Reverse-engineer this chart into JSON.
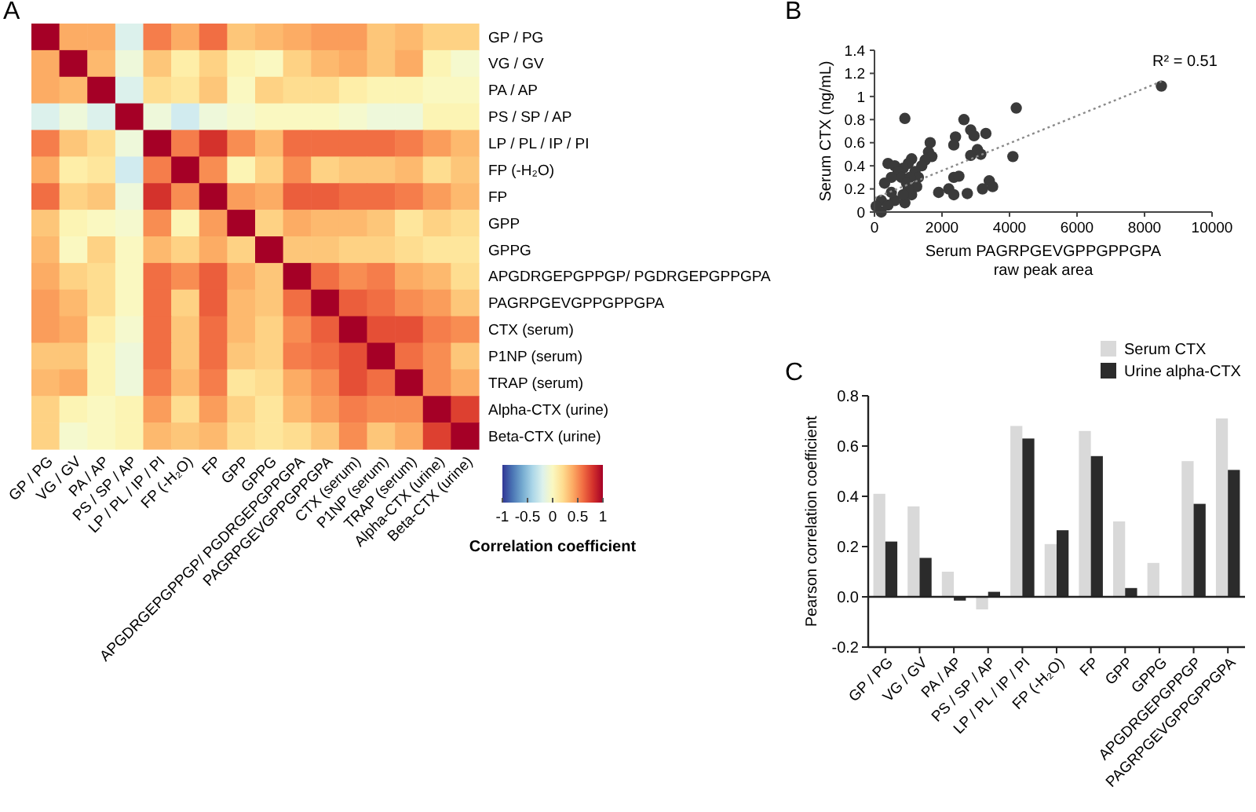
{
  "chart_data": [
    {
      "type": "heatmap",
      "title": "A",
      "clabel": "Correlation coefficient",
      "clim": [
        -1,
        1
      ],
      "cticks": [
        -1,
        -0.5,
        0,
        0.5,
        1
      ],
      "categories": [
        "GP / PG",
        "VG / GV",
        "PA / AP",
        "PS / SP / AP",
        "LP / PL / IP / PI",
        "FP (-H₂O)",
        "FP",
        "GPP",
        "GPPG",
        "APGDRGEPGPPGP/ PGDRGEPGPPGPA",
        "PAGRPGEVGPPGPPGPA",
        "CTX (serum)",
        "P1NP (serum)",
        "TRAP (serum)",
        "Alpha-CTX (urine)",
        "Beta-CTX (urine)"
      ],
      "y_categories": [
        "GP / PG",
        "VG / GV",
        "PA / AP",
        "PS / SP / AP",
        "LP / PL / IP / PI",
        "FP (-H₂O)",
        "FP",
        "GPP",
        "GPPG",
        "APGDRGEPGPPGP/ PGDRGEPGPPGPA",
        "PAGRPGEVGPPGPPGPA",
        "CTX (serum)",
        "P1NP (serum)",
        "TRAP (serum)",
        "Alpha-CTX (urine)",
        "Beta-CTX (urine)"
      ],
      "cells": [
        [
          1,
          0.4,
          0.4,
          -0.2,
          0.55,
          0.4,
          0.6,
          0.3,
          0.35,
          0.4,
          0.45,
          0.45,
          0.3,
          0.35,
          0.25,
          0.25
        ],
        [
          0.4,
          1,
          0.35,
          -0.1,
          0.3,
          0.1,
          0.25,
          0.05,
          0,
          0.25,
          0.35,
          0.4,
          0.3,
          0.4,
          0.05,
          -0.05
        ],
        [
          0.4,
          0.35,
          1,
          -0.2,
          0.2,
          0.15,
          0.3,
          0,
          0.25,
          0.2,
          0.2,
          0.1,
          0.05,
          0.05,
          0,
          0
        ],
        [
          -0.2,
          -0.1,
          -0.2,
          1,
          -0.1,
          -0.25,
          -0.1,
          -0.05,
          0,
          0,
          0,
          -0.05,
          -0.1,
          -0.1,
          0.05,
          0.05
        ],
        [
          0.55,
          0.3,
          0.2,
          -0.1,
          1,
          0.55,
          0.8,
          0.5,
          0.35,
          0.6,
          0.6,
          0.6,
          0.6,
          0.55,
          0.45,
          0.35
        ],
        [
          0.4,
          0.1,
          0.15,
          -0.25,
          0.55,
          1,
          0.5,
          0.05,
          0.25,
          0.5,
          0.25,
          0.3,
          0.3,
          0.35,
          0.2,
          0.3
        ],
        [
          0.6,
          0.25,
          0.3,
          -0.1,
          0.8,
          0.5,
          1,
          0.45,
          0.4,
          0.65,
          0.65,
          0.6,
          0.6,
          0.55,
          0.45,
          0.35
        ],
        [
          0.3,
          0.05,
          0,
          -0.05,
          0.5,
          0.05,
          0.45,
          1,
          0.25,
          0.4,
          0.35,
          0.35,
          0.3,
          0.15,
          0.25,
          0.2
        ],
        [
          0.35,
          0,
          0.25,
          0,
          0.35,
          0.25,
          0.4,
          0.25,
          1,
          0.3,
          0.3,
          0.25,
          0.25,
          0.2,
          0.15,
          0.15
        ],
        [
          0.4,
          0.25,
          0.2,
          0,
          0.6,
          0.5,
          0.65,
          0.4,
          0.3,
          1,
          0.6,
          0.5,
          0.55,
          0.4,
          0.35,
          0.2
        ],
        [
          0.45,
          0.35,
          0.2,
          0,
          0.6,
          0.25,
          0.65,
          0.35,
          0.3,
          0.6,
          1,
          0.65,
          0.6,
          0.5,
          0.45,
          0.3
        ],
        [
          0.45,
          0.4,
          0.1,
          -0.05,
          0.6,
          0.3,
          0.6,
          0.35,
          0.25,
          0.5,
          0.65,
          1,
          0.7,
          0.7,
          0.55,
          0.5
        ],
        [
          0.3,
          0.3,
          0.05,
          -0.1,
          0.6,
          0.3,
          0.6,
          0.3,
          0.25,
          0.55,
          0.6,
          0.7,
          1,
          0.6,
          0.5,
          0.3
        ],
        [
          0.35,
          0.4,
          0.05,
          -0.1,
          0.55,
          0.35,
          0.55,
          0.15,
          0.2,
          0.4,
          0.5,
          0.7,
          0.6,
          1,
          0.5,
          0.4
        ],
        [
          0.25,
          0.05,
          0,
          0.05,
          0.45,
          0.2,
          0.45,
          0.25,
          0.15,
          0.35,
          0.45,
          0.55,
          0.5,
          0.5,
          1,
          0.75
        ],
        [
          0.25,
          -0.05,
          0,
          0.05,
          0.35,
          0.3,
          0.35,
          0.2,
          0.15,
          0.2,
          0.3,
          0.5,
          0.3,
          0.4,
          0.75,
          1
        ]
      ]
    },
    {
      "type": "scatter",
      "title": "B",
      "xlabel": "Serum PAGRPGEVGPPGPPGPA\nraw peak area",
      "ylabel": "Serum CTX (ng/mL)",
      "xlim": [
        0,
        10000
      ],
      "xticks": [
        0,
        2000,
        4000,
        6000,
        8000,
        10000
      ],
      "ylim": [
        0,
        1.4
      ],
      "yticks": [
        0,
        0.2,
        0.4,
        0.6,
        0.8,
        1,
        1.2,
        1.4
      ],
      "annotations": [
        "R² = 0.51"
      ],
      "series": [
        {
          "type": "scatter",
          "color": "#3a3a3a",
          "marker": "circle",
          "x": [
            8500,
            4200,
            4100,
            900,
            2650,
            2400,
            2350,
            2850,
            2950,
            3300,
            2850,
            3050,
            3150,
            2350,
            2500,
            2200,
            1900,
            2350,
            2750,
            3200,
            3400,
            3500,
            1650,
            1600,
            1700,
            1500,
            1400,
            1100,
            1000,
            850,
            400,
            600,
            700,
            800,
            1200,
            1300,
            1050,
            950,
            500,
            900,
            1100,
            1250,
            1000,
            200,
            200,
            50,
            600,
            850,
            300,
            500,
            400
          ],
          "values": [
            1.09,
            0.9,
            0.48,
            0.81,
            0.8,
            0.65,
            0.58,
            0.71,
            0.66,
            0.68,
            0.49,
            0.54,
            0.5,
            0.3,
            0.31,
            0.2,
            0.17,
            0.15,
            0.16,
            0.2,
            0.27,
            0.22,
            0.6,
            0.52,
            0.48,
            0.45,
            0.4,
            0.46,
            0.42,
            0.38,
            0.42,
            0.4,
            0.35,
            0.3,
            0.35,
            0.3,
            0.3,
            0.25,
            0.3,
            0.08,
            0.15,
            0.22,
            0.2,
            0.1,
            0,
            0.05,
            0.1,
            0.15,
            0.25,
            0.17,
            0.06
          ]
        },
        {
          "type": "line",
          "color": "#8a8a8a",
          "line_style": "dotted",
          "x": [
            0,
            8500
          ],
          "values": [
            0.12,
            1.13
          ]
        }
      ]
    },
    {
      "type": "bar",
      "title": "C",
      "ylabel": "Pearson correlation coefficient",
      "legend": "top right",
      "categories": [
        "GP / PG",
        "VG / GV",
        "PA / AP",
        "PS / SP / AP",
        "LP / PL / IP / PI",
        "FP (-H₂O)",
        "FP",
        "GPP",
        "GPPG",
        "APGDRGEPGPPGP",
        "PAGRPGEVGPPGPPGPA"
      ],
      "ylim": [
        -0.2,
        0.8
      ],
      "yticks": [
        -0.2,
        {
          "value": 0,
          "label": "0.0"
        },
        0.2,
        0.4,
        0.6,
        0.8
      ],
      "series": [
        {
          "name": "Serum CTX",
          "color": "#d9d9d9",
          "values": [
            0.41,
            0.36,
            0.1,
            -0.05,
            0.68,
            0.21,
            0.66,
            0.3,
            0.135,
            0.54,
            0.71
          ]
        },
        {
          "name": "Urine alpha-CTX",
          "color": "#2b2b2b",
          "values": [
            0.22,
            0.155,
            -0.015,
            0.02,
            0.63,
            0.265,
            0.56,
            0.035,
            0,
            0.37,
            0.505
          ]
        }
      ]
    }
  ]
}
